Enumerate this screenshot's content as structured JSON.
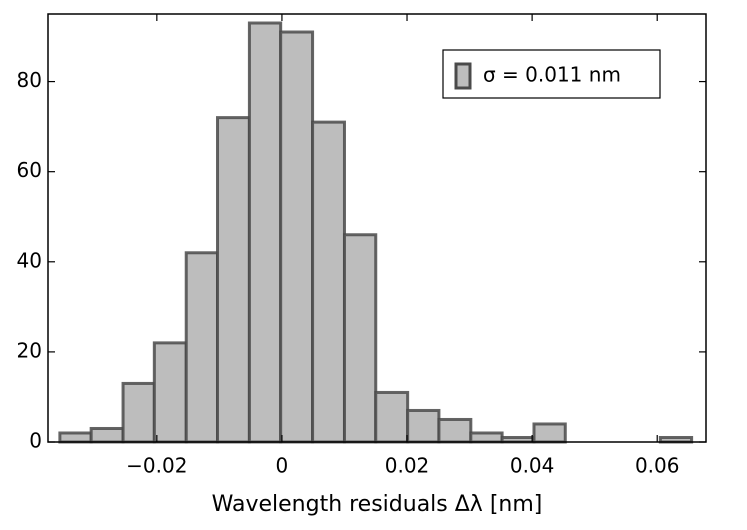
{
  "chart_data": {
    "type": "histogram",
    "xlabel": "Wavelength residuals  Δλ [nm]",
    "bins": [
      -0.0355,
      -0.0305,
      -0.0254,
      -0.0204,
      -0.0153,
      -0.0103,
      -0.0052,
      -0.0002,
      0.0049,
      0.01,
      0.015,
      0.0201,
      0.0251,
      0.0302,
      0.0352,
      0.0403,
      0.0453,
      0.0504,
      0.0554,
      0.0605,
      0.0655
    ],
    "series": [
      {
        "name": "σ = 0.011 nm",
        "color": "#bdbdbd",
        "values": [
          2,
          3,
          13,
          22,
          42,
          72,
          93,
          91,
          71,
          46,
          11,
          7,
          5,
          2,
          1,
          4,
          0,
          0,
          0,
          1
        ]
      }
    ],
    "xlim": [
      -0.0374,
      0.0678
    ],
    "ylim": [
      0,
      95
    ],
    "xticks": [
      {
        "value": -0.02,
        "label": "−0.02"
      },
      0,
      0.02,
      0.04,
      0.06
    ],
    "yticks": [
      0,
      20,
      40,
      60,
      80
    ],
    "legend": "upper right"
  }
}
